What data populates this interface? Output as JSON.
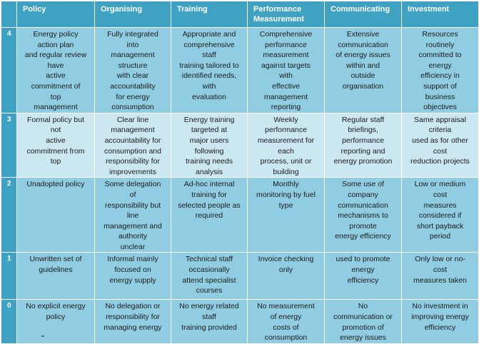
{
  "headers": [
    "",
    "Policy",
    "Organising",
    "Training",
    "Performance Measurement",
    "Communicating",
    "Investment"
  ],
  "rows": [
    {
      "level": "4",
      "shade": "a",
      "cells": [
        [
          "Energy policy",
          "action plan",
          "and regular review",
          "have",
          "active",
          "commitment of",
          "top",
          "management"
        ],
        [
          "Fully integrated",
          "into",
          "management",
          "structure",
          "with clear",
          "accountability",
          "for energy",
          "consumption"
        ],
        [
          "Appropriate and",
          "comprehensive",
          "staff",
          "training tailored to",
          "identified needs,",
          "with",
          "evaluation"
        ],
        [
          "Comprehensive",
          "performance",
          "measurement",
          "against targets",
          "with",
          "effective",
          "management",
          "reporting"
        ],
        [
          "Extensive",
          "communication",
          "of energy issues",
          "within and",
          "outside",
          "organisation"
        ],
        [
          "Resources",
          "routinely",
          "committed to",
          "energy",
          "efficiency in",
          "support of",
          "business",
          "objectives"
        ]
      ]
    },
    {
      "level": "3",
      "shade": "b",
      "cells": [
        [
          "Formal policy but",
          "not",
          "active",
          "commitment from",
          "top"
        ],
        [
          "Clear line",
          "management",
          "accountability for",
          "consumption and",
          "responsibility for",
          "improvements"
        ],
        [
          "Energy training",
          "targeted at",
          "major users",
          "following",
          "training needs",
          "analysis"
        ],
        [
          "Weekly",
          "performance",
          "measurement for",
          "each",
          "process, unit or",
          "building"
        ],
        [
          "Regular staff",
          "briefings,",
          "performance",
          "reporting and",
          "energy promotion"
        ],
        [
          "Same appraisal",
          "criteria",
          "used as for other",
          "cost",
          "reduction projects"
        ]
      ]
    },
    {
      "level": "2",
      "shade": "a",
      "cells": [
        [
          "Unadopted policy"
        ],
        [
          "Some delegation",
          "of",
          "responsibility but",
          "line",
          "management and",
          "authority",
          "unclear"
        ],
        [
          "Ad-hoc internal",
          "training for",
          "selected people as",
          "required"
        ],
        [
          "Monthly",
          "monitoring by fuel",
          "type"
        ],
        [
          "Some use of",
          "company",
          "communication",
          "mechanisms to",
          "promote",
          "energy efficiency"
        ],
        [
          "Low or medium",
          "cost",
          "measures",
          "considered if",
          "short payback",
          "period"
        ]
      ]
    },
    {
      "level": "1",
      "shade": "a",
      "cells": [
        [
          "Unwritten set of",
          "guidelines"
        ],
        [
          "Informal mainly",
          "focused on",
          "energy supply"
        ],
        [
          "Technical staff",
          "occasionally",
          "attend specialist",
          "courses"
        ],
        [
          "Invoice checking",
          "only"
        ],
        [
          "used to promote",
          "energy",
          "efficiency"
        ],
        [
          "Only low or no-",
          "cost",
          "measures taken"
        ]
      ]
    },
    {
      "level": "0",
      "shade": "a",
      "cells": [
        [
          "No explicit energy",
          "policy"
        ],
        [
          "No delegation or",
          "responsibility for",
          "managing energy"
        ],
        [
          "No energy related",
          "staff",
          "training provided"
        ],
        [
          "No measurement",
          "of energy",
          "costs of",
          "consumption"
        ],
        [
          "No",
          "communication or",
          "promotion of",
          "energy issues"
        ],
        [
          "No investment in",
          "improving energy",
          "efficiency"
        ]
      ]
    }
  ]
}
